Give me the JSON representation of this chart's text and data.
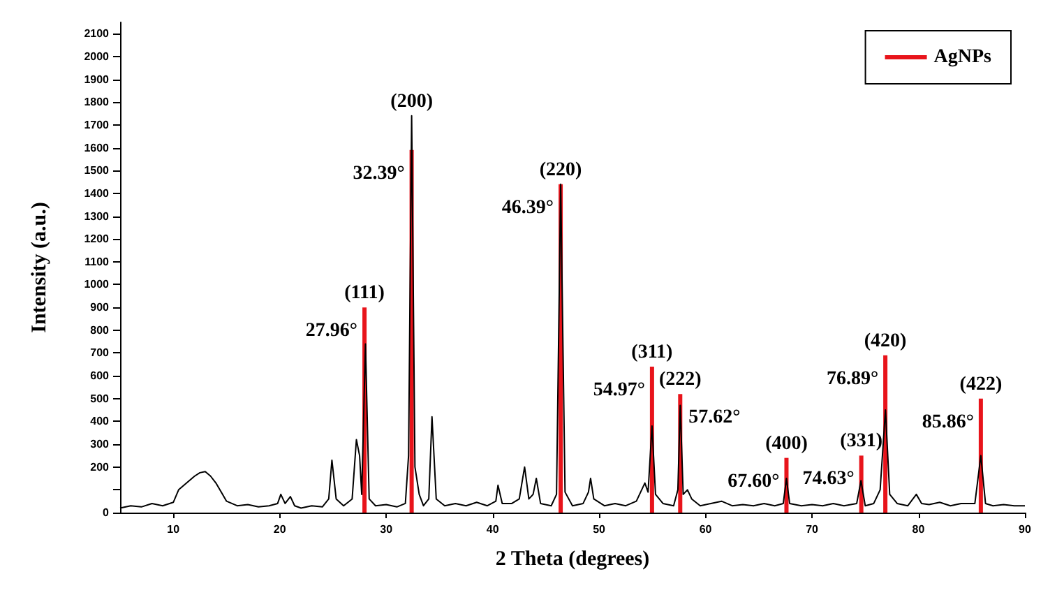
{
  "chart_data": {
    "type": "line",
    "xlabel": "2 Theta (degrees)",
    "ylabel": "Intensity (a.u.)",
    "xlim": [
      5,
      90
    ],
    "xticks": [
      10,
      20,
      30,
      40,
      50,
      60,
      70,
      80,
      90
    ],
    "ylim": [
      0,
      2150
    ],
    "yticks": [
      0,
      {
        "value": 100,
        "label": null
      },
      200,
      300,
      400,
      500,
      600,
      700,
      800,
      900,
      1000,
      1100,
      1200,
      1300,
      1400,
      1500,
      1600,
      1700,
      1800,
      1900,
      2000,
      2100
    ],
    "grid": false,
    "legend": "top right",
    "marker": "none",
    "line_style": "solid",
    "series": [
      {
        "color": "#000000",
        "x": [
          5,
          6,
          7,
          8,
          9,
          10,
          10.5,
          11,
          11.5,
          12,
          12.5,
          13,
          13.5,
          14,
          14.5,
          15,
          16,
          17,
          18,
          19,
          19.8,
          20.1,
          20.5,
          21,
          21.4,
          22,
          23,
          24,
          24.6,
          24.9,
          25.3,
          26,
          26.8,
          27.2,
          27.5,
          27.7,
          28.05,
          28.4,
          29,
          30,
          31,
          31.8,
          32.1,
          32.39,
          32.7,
          33.1,
          33.5,
          34,
          34.3,
          34.7,
          35.5,
          36.5,
          37.5,
          38.5,
          39.5,
          40.3,
          40.5,
          40.9,
          41.8,
          42.5,
          43,
          43.4,
          43.8,
          44.1,
          44.5,
          45.5,
          46,
          46.39,
          46.8,
          47.5,
          48.5,
          49,
          49.2,
          49.5,
          50.5,
          51.5,
          52.5,
          53.5,
          54.3,
          54.6,
          54.97,
          55.3,
          56,
          57,
          57.4,
          57.62,
          57.9,
          58.3,
          58.7,
          59.5,
          60.5,
          61.5,
          62.5,
          63.5,
          64.5,
          65.5,
          66.5,
          67.3,
          67.6,
          67.9,
          69,
          70,
          71,
          72,
          73,
          74.2,
          74.6,
          75,
          75.8,
          76.4,
          76.9,
          77.3,
          78,
          79,
          79.8,
          80.3,
          81,
          82,
          83,
          84,
          85.3,
          85.86,
          86.3,
          87,
          88,
          89,
          90
        ],
        "values": [
          20,
          30,
          25,
          40,
          30,
          45,
          100,
          120,
          140,
          160,
          175,
          180,
          160,
          130,
          90,
          50,
          30,
          35,
          25,
          30,
          40,
          80,
          40,
          70,
          30,
          20,
          30,
          25,
          60,
          230,
          60,
          30,
          60,
          320,
          250,
          80,
          740,
          60,
          30,
          35,
          25,
          40,
          250,
          1740,
          200,
          80,
          30,
          60,
          420,
          60,
          30,
          40,
          30,
          45,
          30,
          50,
          120,
          40,
          40,
          60,
          200,
          60,
          80,
          150,
          40,
          30,
          80,
          1440,
          90,
          30,
          40,
          90,
          150,
          60,
          30,
          40,
          30,
          50,
          130,
          90,
          380,
          80,
          40,
          30,
          100,
          470,
          80,
          100,
          60,
          30,
          40,
          50,
          30,
          35,
          30,
          40,
          30,
          40,
          150,
          40,
          30,
          35,
          30,
          40,
          30,
          40,
          140,
          30,
          40,
          100,
          450,
          80,
          40,
          30,
          80,
          40,
          35,
          45,
          30,
          40,
          40,
          250,
          40,
          30,
          35,
          30,
          30
        ]
      },
      {
        "type": "bar",
        "name": "AgNPs",
        "color": "#e8141b",
        "x": [
          27.96,
          32.39,
          46.39,
          54.97,
          57.62,
          67.6,
          74.63,
          76.89,
          85.86
        ],
        "values": [
          900,
          1590,
          1440,
          640,
          520,
          240,
          250,
          690,
          500
        ]
      }
    ],
    "annotations": [
      {
        "text": "(111)",
        "x": 27.96,
        "y": 900
      },
      {
        "text": "27.96°",
        "x": 27.96,
        "y": 900
      },
      {
        "text": "(200)",
        "x": 32.39,
        "y": 1740
      },
      {
        "text": "32.39°",
        "x": 32.39,
        "y": 1590
      },
      {
        "text": "(220)",
        "x": 46.39,
        "y": 1440
      },
      {
        "text": "46.39°",
        "x": 46.39,
        "y": 1440
      },
      {
        "text": "(311)",
        "x": 54.97,
        "y": 640
      },
      {
        "text": "54.97°",
        "x": 54.97,
        "y": 640
      },
      {
        "text": "(222)",
        "x": 57.62,
        "y": 520
      },
      {
        "text": "57.62°",
        "x": 57.62,
        "y": 520
      },
      {
        "text": "(400)",
        "x": 67.6,
        "y": 240
      },
      {
        "text": "67.60°",
        "x": 67.6,
        "y": 240
      },
      {
        "text": "(331)",
        "x": 74.63,
        "y": 250
      },
      {
        "text": "74.63°",
        "x": 74.63,
        "y": 250
      },
      {
        "text": "(420)",
        "x": 76.89,
        "y": 690
      },
      {
        "text": "76.89°",
        "x": 76.89,
        "y": 690
      },
      {
        "text": "(422)",
        "x": 85.86,
        "y": 500
      },
      {
        "text": "85.86°",
        "x": 85.86,
        "y": 500
      }
    ]
  }
}
